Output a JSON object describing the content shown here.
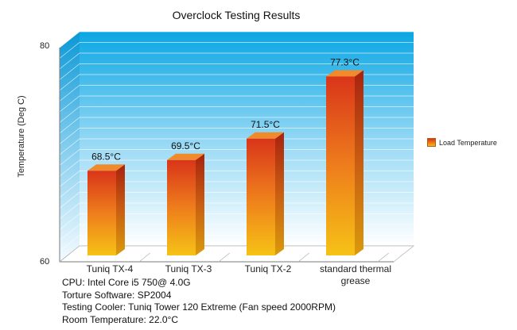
{
  "chart_data": {
    "type": "bar",
    "title": "Overclock Testing Results",
    "ylabel": "Temperature (Deg C)",
    "xlabel": "",
    "ylim": [
      60,
      80
    ],
    "ytick_labels": [
      "80",
      "60"
    ],
    "categories": [
      "Tuniq TX-4",
      "Tuniq TX-3",
      "Tuniq TX-2",
      "standard thermal grease"
    ],
    "series": [
      {
        "name": "Load Temperature",
        "values": [
          68.5,
          69.5,
          71.5,
          77.3
        ],
        "data_labels": [
          "68.5°C",
          "69.5°C",
          "71.5°C",
          "77.3°C"
        ]
      }
    ],
    "legend_position": "right",
    "grid": true,
    "colors": {
      "bar_top": "#d9351a",
      "bar_bottom": "#f6b816",
      "wall_top": "#0aa6e4",
      "wall_bottom": "#ffffff"
    }
  },
  "notes": [
    "CPU: Intel Core i5 750@ 4.0G",
    "Torture Software: SP2004",
    "Testing Cooler: Tuniq Tower 120 Extreme (Fan speed 2000RPM)",
    "Room Temperature: 22.0°C"
  ]
}
